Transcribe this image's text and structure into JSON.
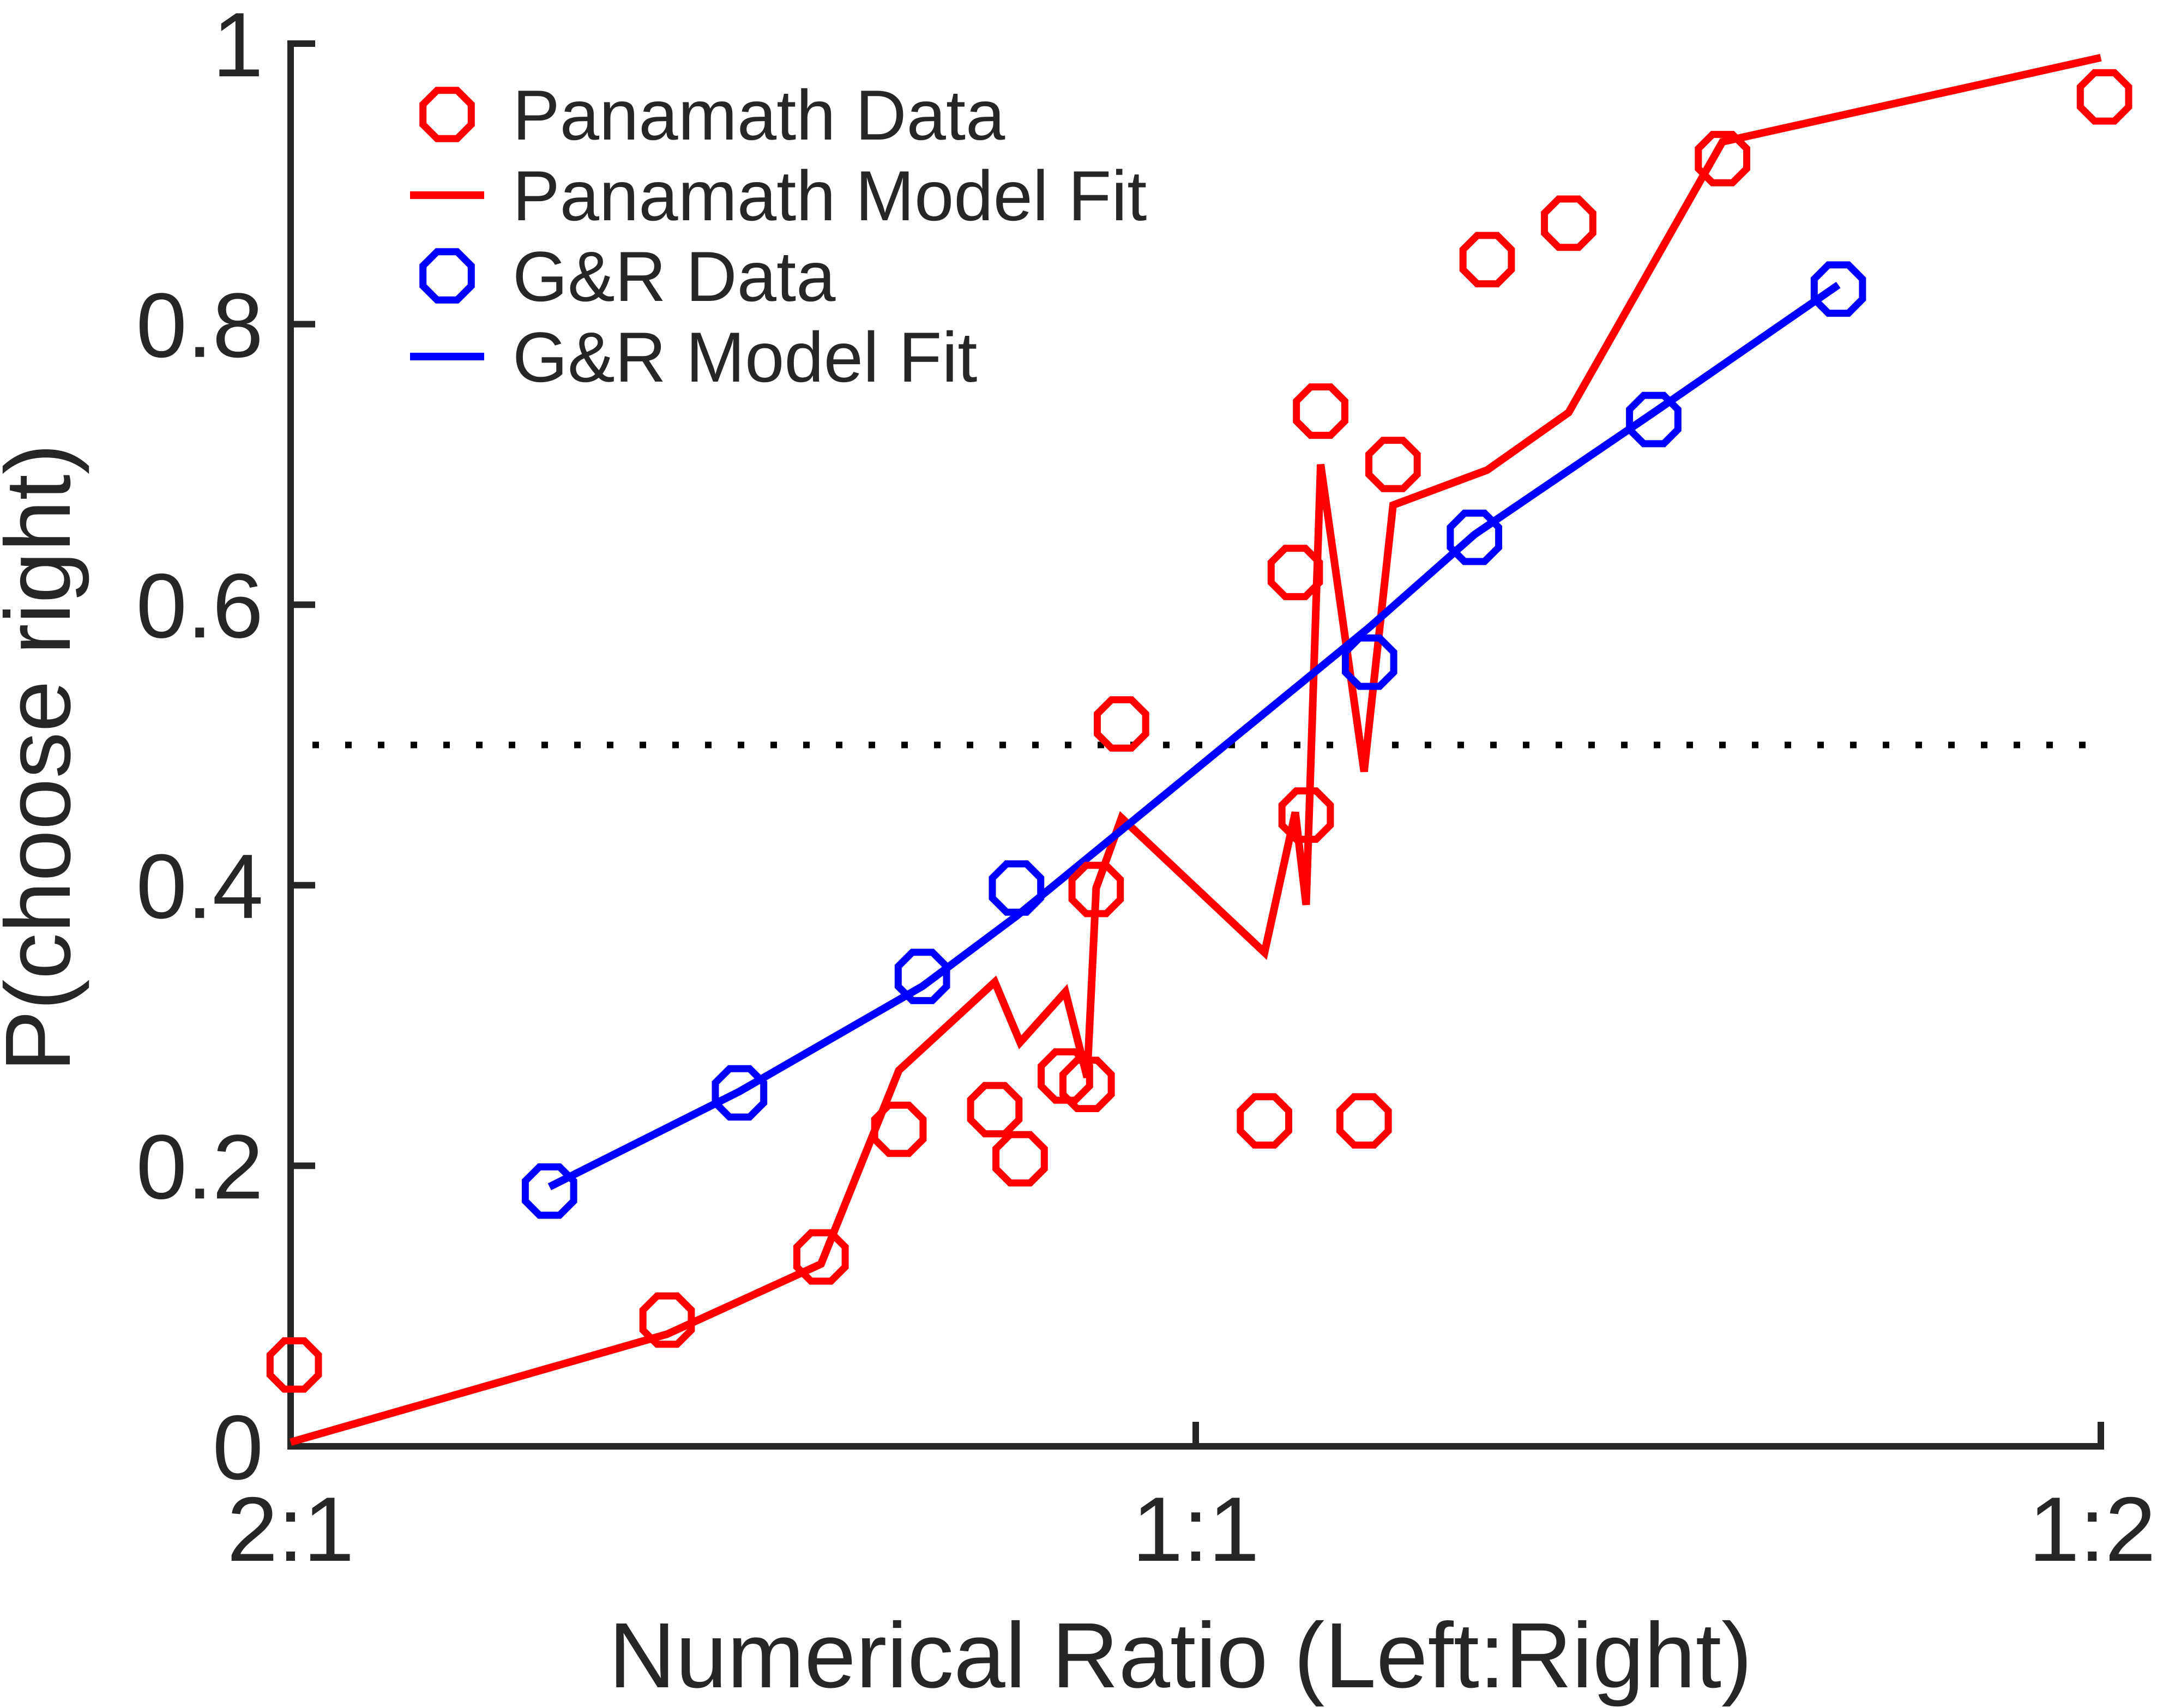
{
  "chart_data": {
    "type": "scatter",
    "title": "",
    "xlabel": "Numerical Ratio (Left:Right)",
    "ylabel": "P(choose right)",
    "xlim": [
      0,
      1
    ],
    "ylim": [
      0,
      1
    ],
    "x_ticks": [
      0,
      0.5,
      1
    ],
    "x_tick_labels": [
      "2:1",
      "1:1",
      "1:2"
    ],
    "y_ticks": [
      0,
      0.2,
      0.4,
      0.6,
      0.8,
      1
    ],
    "y_tick_labels": [
      "0",
      "0.2",
      "0.4",
      "0.6",
      "0.8",
      "1"
    ],
    "reference_line": {
      "y": 0.5,
      "style": "dotted",
      "color": "#000000"
    },
    "legend": {
      "position": "top-left"
    },
    "series": [
      {
        "name": "Panamath Data",
        "kind": "markers",
        "marker": "circle-open",
        "color": "#ff0000",
        "points": [
          [
            0.002,
            0.058
          ],
          [
            0.208,
            0.09
          ],
          [
            0.293,
            0.135
          ],
          [
            0.336,
            0.226
          ],
          [
            0.389,
            0.24
          ],
          [
            0.403,
            0.205
          ],
          [
            0.428,
            0.264
          ],
          [
            0.44,
            0.258
          ],
          [
            0.445,
            0.397
          ],
          [
            0.459,
            0.515
          ],
          [
            0.538,
            0.232
          ],
          [
            0.555,
            0.623
          ],
          [
            0.561,
            0.45
          ],
          [
            0.569,
            0.738
          ],
          [
            0.593,
            0.232
          ],
          [
            0.609,
            0.7
          ],
          [
            0.661,
            0.846
          ],
          [
            0.706,
            0.872
          ],
          [
            0.791,
            0.918
          ],
          [
            1.002,
            0.962
          ]
        ]
      },
      {
        "name": "Panamath Model Fit",
        "kind": "line",
        "color": "#ff0000",
        "points": [
          [
            0.0,
            0.003
          ],
          [
            0.208,
            0.08
          ],
          [
            0.293,
            0.13
          ],
          [
            0.336,
            0.268
          ],
          [
            0.389,
            0.331
          ],
          [
            0.403,
            0.288
          ],
          [
            0.428,
            0.324
          ],
          [
            0.44,
            0.263
          ],
          [
            0.445,
            0.398
          ],
          [
            0.459,
            0.448
          ],
          [
            0.538,
            0.352
          ],
          [
            0.555,
            0.452
          ],
          [
            0.561,
            0.386
          ],
          [
            0.569,
            0.7
          ],
          [
            0.593,
            0.481
          ],
          [
            0.609,
            0.671
          ],
          [
            0.661,
            0.696
          ],
          [
            0.706,
            0.737
          ],
          [
            0.791,
            0.93
          ],
          [
            1.0,
            0.99
          ]
        ]
      },
      {
        "name": "G&R Data",
        "kind": "markers",
        "marker": "circle-open",
        "color": "#0000ff",
        "points": [
          [
            0.143,
            0.182
          ],
          [
            0.248,
            0.252
          ],
          [
            0.349,
            0.335
          ],
          [
            0.401,
            0.398
          ],
          [
            0.596,
            0.559
          ],
          [
            0.654,
            0.648
          ],
          [
            0.753,
            0.732
          ],
          [
            0.855,
            0.825
          ]
        ]
      },
      {
        "name": "G&R Model Fit",
        "kind": "line",
        "color": "#0000ff",
        "points": [
          [
            0.143,
            0.185
          ],
          [
            0.248,
            0.253
          ],
          [
            0.349,
            0.328
          ],
          [
            0.401,
            0.378
          ],
          [
            0.596,
            0.584
          ],
          [
            0.654,
            0.65
          ],
          [
            0.753,
            0.737
          ],
          [
            0.855,
            0.828
          ]
        ]
      }
    ]
  }
}
